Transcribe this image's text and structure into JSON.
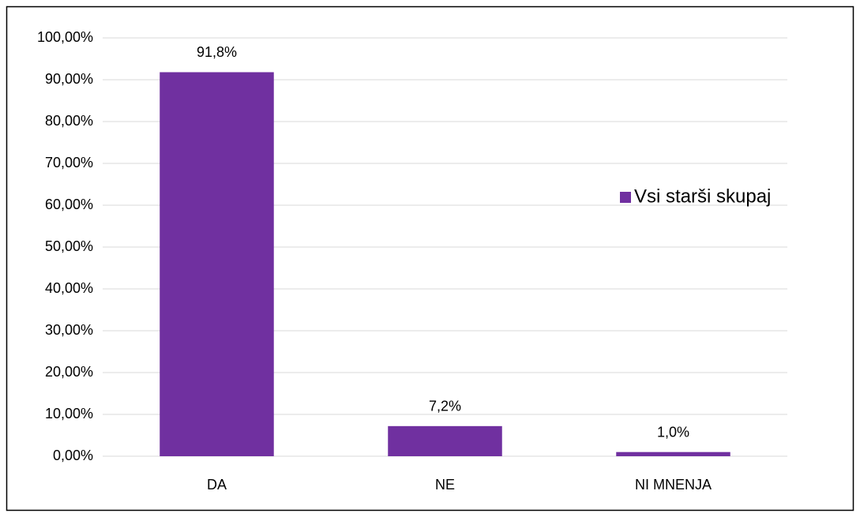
{
  "chart_data": {
    "type": "bar",
    "categories": [
      "DA",
      "NE",
      "NI MNENJA"
    ],
    "series": [
      {
        "name": "Vsi starši skupaj",
        "color": "#7030a0",
        "values": [
          91.8,
          7.2,
          1.0
        ],
        "value_labels": [
          "91,8%",
          "7,2%",
          "1,0%"
        ]
      }
    ],
    "ylim": [
      0,
      100
    ],
    "yticks": [
      {
        "value": 0,
        "label": "0,00%"
      },
      {
        "value": 10,
        "label": "10,00%"
      },
      {
        "value": 20,
        "label": "20,00%"
      },
      {
        "value": 30,
        "label": "30,00%"
      },
      {
        "value": 40,
        "label": "40,00%"
      },
      {
        "value": 50,
        "label": "50,00%"
      },
      {
        "value": 60,
        "label": "60,00%"
      },
      {
        "value": 70,
        "label": "70,00%"
      },
      {
        "value": 80,
        "label": "80,00%"
      },
      {
        "value": 90,
        "label": "90,00%"
      },
      {
        "value": 100,
        "label": "100,00%"
      }
    ],
    "grid": true,
    "legend": "right"
  }
}
